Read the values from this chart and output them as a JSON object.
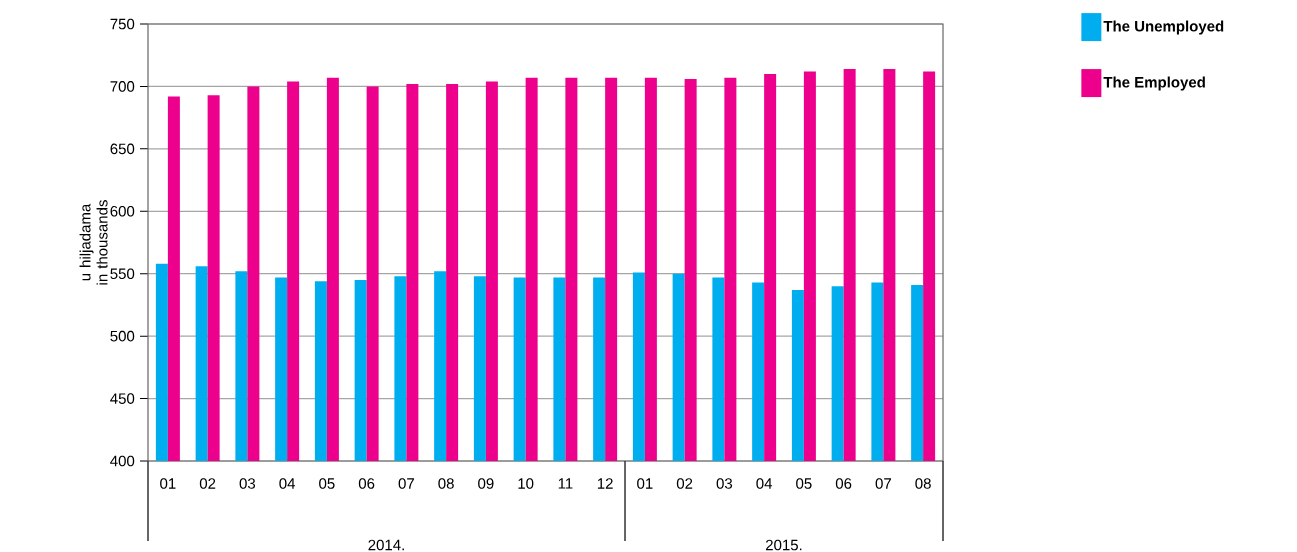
{
  "chart_data": {
    "type": "bar",
    "ylabel": "u hiljadama in thousands",
    "categories": [
      "01",
      "02",
      "03",
      "04",
      "05",
      "06",
      "07",
      "08",
      "09",
      "10",
      "11",
      "12",
      "01",
      "02",
      "03",
      "04",
      "05",
      "06",
      "07",
      "08"
    ],
    "series": [
      {
        "name": "The Unemployed",
        "color": "#00aeef",
        "values": [
          558,
          556,
          552,
          547,
          544,
          545,
          548,
          552,
          548,
          547,
          547,
          547,
          551,
          550,
          547,
          543,
          537,
          540,
          543,
          541
        ]
      },
      {
        "name": "The Employed",
        "color": "#ec008c",
        "values": [
          692,
          693,
          700,
          704,
          707,
          700,
          702,
          702,
          704,
          707,
          707,
          707,
          707,
          706,
          707,
          710,
          712,
          714,
          714,
          712
        ]
      }
    ],
    "annotations": [
      "2014.",
      "2015."
    ],
    "ylim": [
      400,
      750
    ],
    "yticks": [
      400,
      450,
      500,
      550,
      600,
      650,
      700,
      750
    ],
    "grid": "y",
    "legend": "top right"
  }
}
